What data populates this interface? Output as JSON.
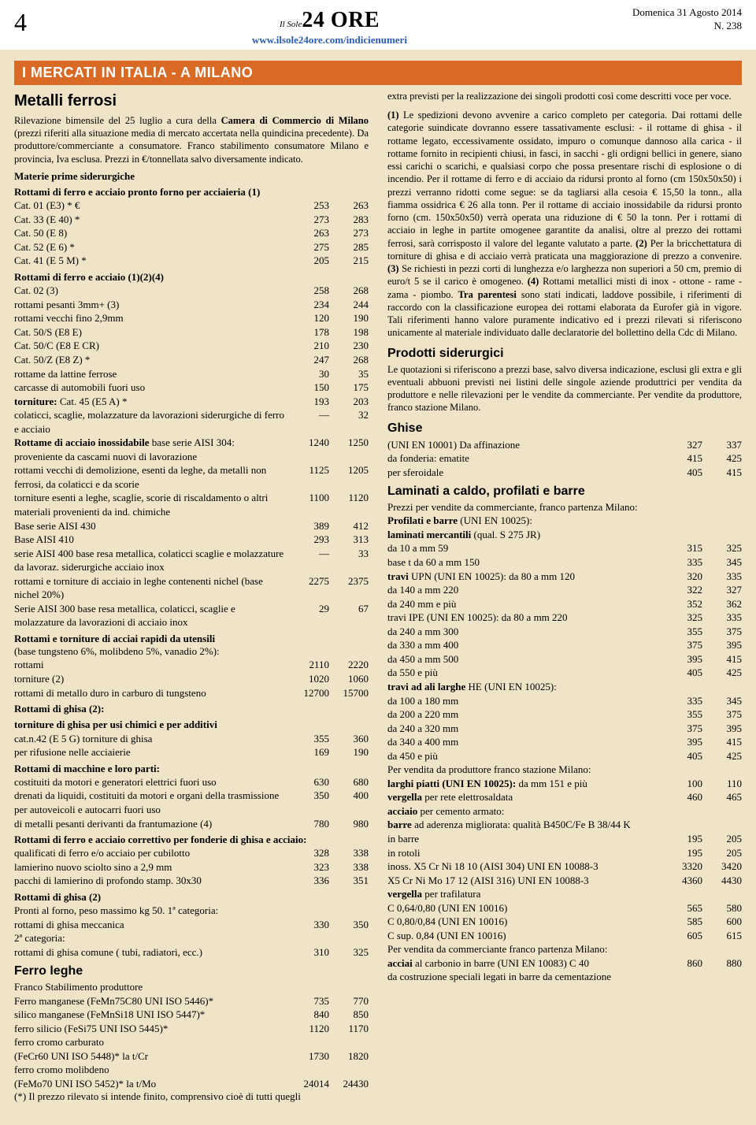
{
  "header": {
    "page_number": "4",
    "logo_small": "Il Sole",
    "logo_big": "24 ORE",
    "url": "www.ilsole24ore.com/indicienumeri",
    "date": "Domenica 31 Agosto 2014",
    "issue": "N. 238"
  },
  "section_bar": "I MERCATI IN ITALIA - A MILANO",
  "left": {
    "title": "Metalli ferrosi",
    "intro_parts": [
      {
        "t": "Rilevazione bimensile del 25 luglio a cura della ",
        "b": false
      },
      {
        "t": "Camera di Commercio di Milano ",
        "b": true
      },
      {
        "t": "(prezzi riferiti alla situazione media di mercato accertata nella quindicina precedente). Da produttore/commerciante a consumatore. Franco stabilimento consumatore Milano e provincia, Iva esclusa. Prezzi in €/tonnellata salvo diversamente indicato.",
        "b": false
      }
    ],
    "groups": [
      {
        "heading": "Materie prime siderurgiche",
        "rows": []
      },
      {
        "heading": "Rottami di ferro e acciaio pronto forno per acciaieria (1)",
        "rows": [
          {
            "l": "Cat. 01 (E3) * €",
            "a": "253",
            "b": "263"
          },
          {
            "l": "Cat. 33 (E 40) *",
            "a": "273",
            "b": "283"
          },
          {
            "l": "Cat. 50 (E 8)",
            "a": "263",
            "b": "273"
          },
          {
            "l": "Cat. 52 (E 6) *",
            "a": "275",
            "b": "285"
          },
          {
            "l": "Cat. 41 (E 5 M) *",
            "a": "205",
            "b": "215"
          }
        ]
      },
      {
        "heading": "Rottami di ferro e acciaio (1)(2)(4)",
        "rows": [
          {
            "l": "Cat. 02 (3)",
            "a": "258",
            "b": "268"
          },
          {
            "l": "rottami pesanti 3mm+ (3)",
            "a": "234",
            "b": "244"
          },
          {
            "l": "rottami vecchi fino 2,9mm",
            "a": "120",
            "b": "190"
          },
          {
            "l": "Cat. 50/S (E8 E)",
            "a": "178",
            "b": "198"
          },
          {
            "l": "Cat. 50/C (E8 E CR)",
            "a": "210",
            "b": "230"
          },
          {
            "l": "Cat. 50/Z (E8 Z) *",
            "a": "247",
            "b": "268"
          },
          {
            "l": "rottame da lattine ferrose",
            "a": "30",
            "b": "35"
          },
          {
            "l": "carcasse di automobili fuori uso",
            "a": "150",
            "b": "175"
          },
          {
            "l": "<b>torniture:</b> Cat. 45 (E5 A) *",
            "a": "193",
            "b": "203"
          },
          {
            "l": "colaticci, scaglie, molazzature da lavorazioni siderurgiche di ferro e acciaio",
            "a": "—",
            "b": "32"
          },
          {
            "l": "<b>Rottame di acciaio inossidabile</b> base serie AISI 304: proveniente da cascami nuovi di lavorazione",
            "a": "1240",
            "b": "1250"
          },
          {
            "l": "rottami vecchi di demolizione, esenti da leghe, da metalli non ferrosi, da colaticci e da scorie",
            "a": "1125",
            "b": "1205"
          },
          {
            "l": "torniture esenti a leghe, scaglie, scorie di riscaldamento o altri materiali provenienti da ind. chimiche",
            "a": "1100",
            "b": "1120"
          },
          {
            "l": "Base serie AISI 430",
            "a": "389",
            "b": "412"
          },
          {
            "l": "Base AISI 410",
            "a": "293",
            "b": "313"
          },
          {
            "l": "serie AISI 400 base resa metallica, colaticci scaglie e molazzature da lavoraz. siderurgiche acciaio inox",
            "a": "—",
            "b": "33"
          },
          {
            "l": "rottami e torniture di acciaio in leghe contenenti nichel (base nichel 20%)",
            "a": "2275",
            "b": "2375"
          },
          {
            "l": "Serie AISI 300 base resa metallica, colaticci, scaglie e molazzature da lavorazioni di acciaio inox",
            "a": "29",
            "b": "67"
          }
        ]
      },
      {
        "heading": "Rottami e torniture di acciai rapidi da utensili",
        "subheading": "(base tungsteno 6%, molibdeno 5%, vanadio 2%):",
        "rows": [
          {
            "l": "rottami",
            "a": "2110",
            "b": "2220"
          },
          {
            "l": "torniture (2)",
            "a": "1020",
            "b": "1060"
          },
          {
            "l": "rottami di metallo duro in carburo di tungsteno",
            "a": "12700",
            "b": "15700"
          }
        ]
      },
      {
        "heading": "Rottami di ghisa (2):",
        "rows": []
      },
      {
        "heading": "torniture di ghisa per usi chimici e per additivi",
        "rows": [
          {
            "l": "cat.n.42 (E 5 G) torniture di ghisa",
            "a": "355",
            "b": "360"
          },
          {
            "l": "per rifusione nelle acciaierie",
            "a": "169",
            "b": "190"
          }
        ]
      },
      {
        "heading": "Rottami di macchine e loro parti:",
        "rows": [
          {
            "l": "costituiti da motori e generatori elettrici fuori uso",
            "a": "630",
            "b": "680"
          },
          {
            "l": "drenati da liquidi, costituiti da motori e organi della trasmissione per autoveicoli e autocarri fuori uso",
            "a": "350",
            "b": "400"
          },
          {
            "l": "di metalli pesanti derivanti da frantumazione (4)",
            "a": "780",
            "b": "980"
          }
        ]
      },
      {
        "heading": "Rottami di ferro e acciaio correttivo per fonderie di ghisa e acciaio:",
        "rows": [
          {
            "l": "qualificati di ferro e/o acciaio per cubilotto",
            "a": "328",
            "b": "338"
          },
          {
            "l": "lamierino nuovo sciolto sino a 2,9 mm",
            "a": "323",
            "b": "338"
          },
          {
            "l": "pacchi di lamierino di profondo stamp. 30x30",
            "a": "336",
            "b": "351"
          }
        ]
      },
      {
        "heading": "Rottami di ghisa (2)",
        "rows": [
          {
            "l": "Pronti al forno, peso massimo kg 50. 1ª categoria:",
            "a": "",
            "b": ""
          },
          {
            "l": "rottami di ghisa meccanica",
            "a": "330",
            "b": "350"
          },
          {
            "l": "2ª categoria:",
            "a": "",
            "b": ""
          },
          {
            "l": "rottami di ghisa comune ( tubi, radiatori, ecc.)",
            "a": "310",
            "b": "325"
          }
        ]
      }
    ],
    "ferro_title": "Ferro leghe",
    "ferro_sub": "Franco Stabilimento produttore",
    "ferro_rows": [
      {
        "l": "Ferro manganese (FeMn75C80 UNI ISO 5446)*",
        "a": "735",
        "b": "770"
      },
      {
        "l": "silico manganese (FeMnSi18 UNI ISO 5447)*",
        "a": "840",
        "b": "850"
      },
      {
        "l": "ferro silicio (FeSi75 UNI ISO 5445)*",
        "a": "1120",
        "b": "1170"
      },
      {
        "l": "ferro cromo carburato",
        "a": "",
        "b": ""
      },
      {
        "l": "(FeCr60 UNI ISO 5448)* la t/Cr",
        "a": "1730",
        "b": "1820"
      },
      {
        "l": "ferro cromo molibdeno",
        "a": "",
        "b": ""
      },
      {
        "l": "(FeMo70 UNI ISO 5452)* la t/Mo",
        "a": "24014",
        "b": "24430"
      }
    ],
    "ferro_note": "(*) Il prezzo rilevato si intende finito, comprensivo cioè di tutti quegli"
  },
  "right": {
    "cont_text": "extra previsti per la realizzazione dei singoli prodotti così come descritti voce per voce.",
    "note1_parts": [
      {
        "t": "(1) ",
        "b": true
      },
      {
        "t": "Le spedizioni devono avvenire a carico completo per categoria. Dai rottami delle categorie suindicate dovranno essere tassativamente esclusi: - il rottame di ghisa - il rottame legato, eccessivamente ossidato, impuro o comunque dannoso alla carica - il rottame fornito in recipienti chiusi, in fasci, in sacchi - gli ordigni bellici in genere, siano essi carichi o scarichi, e qualsiasi corpo che possa presentare rischi di esplosione o di incendio. Per il rottame di ferro e di acciaio da ridursi pronto al forno (cm 150x50x50) i prezzi verranno ridotti come segue: se da tagliarsi alla cesoia € 15,50 la tonn., alla fiamma ossidrica € 26 alla tonn. Per il rottame di acciaio inossidabile da ridursi pronto forno (cm. 150x50x50) verrà operata una riduzione di € 50 la tonn. Per i rottami di acciaio in leghe in partite omogenee garantite da analisi, oltre al prezzo dei rottami ferrosi, sarà corrisposto il valore del legante valutato a parte. ",
        "b": false
      },
      {
        "t": "(2) ",
        "b": true
      },
      {
        "t": "Per la bricchettatura di torniture di ghisa e di acciaio verrà praticata una maggiorazione di prezzo a convenire. ",
        "b": false
      },
      {
        "t": "(3) ",
        "b": true
      },
      {
        "t": "Se richiesti in pezzi corti di lunghezza e/o larghezza non superiori a 50 cm, premio di euro/t 5 se il carico è omogeneo. ",
        "b": false
      },
      {
        "t": "(4) ",
        "b": true
      },
      {
        "t": "Rottami metallici misti di inox - ottone - rame - zama - piombo. ",
        "b": false
      },
      {
        "t": "Tra parentesi ",
        "b": true
      },
      {
        "t": "sono stati indicati, laddove possibile, i riferimenti di raccordo con la classificazione europea dei rottami elaborata da Eurofer già in vigore. Tali riferimenti hanno valore puramente indicativo ed i prezzi rilevati si riferiscono unicamente al materiale individuato dalle declaratorie del bollettino della Cdc di Milano.",
        "b": false
      }
    ],
    "prodotti_title": "Prodotti siderurgici",
    "prodotti_text": "Le quotazioni si riferiscono a prezzi base, salvo diversa indicazione, esclusi gli extra e gli eventuali abbuoni previsti nei listini delle singole aziende produttrici per vendita da produttore e nelle rilevazioni per le vendite da commerciante. Per vendite da produttore, franco stazione Milano.",
    "ghise_title": "Ghise",
    "ghise_rows": [
      {
        "l": "(UNI EN 10001) Da affinazione",
        "a": "327",
        "b": "337"
      },
      {
        "l": "da fonderia: ematite",
        "a": "415",
        "b": "425"
      },
      {
        "l": "per sferoidale",
        "a": "405",
        "b": "415"
      }
    ],
    "laminati_title": "Laminati a caldo, profilati e barre",
    "laminati_intro": "Prezzi per vendite da commerciante, franco partenza Milano:",
    "laminati_rows": [
      {
        "l": "<b>Profilati e barre</b> (UNI EN 10025):",
        "a": "",
        "b": ""
      },
      {
        "l": "<b>laminati mercantili</b> (qual. S 275 JR)",
        "a": "",
        "b": ""
      },
      {
        "l": "da 10 a mm 59",
        "a": "315",
        "b": "325"
      },
      {
        "l": "base t da 60 a mm 150",
        "a": "335",
        "b": "345"
      },
      {
        "l": "<b>travi</b> UPN (UNI EN 10025): da 80 a mm 120",
        "a": "320",
        "b": "335"
      },
      {
        "l": "da 140 a mm 220",
        "a": "322",
        "b": "327"
      },
      {
        "l": "da 240 mm e più",
        "a": "352",
        "b": "362"
      },
      {
        "l": "travi IPE (UNI EN 10025): da 80 a mm 220",
        "a": "325",
        "b": "335"
      },
      {
        "l": "da 240 a mm 300",
        "a": "355",
        "b": "375"
      },
      {
        "l": "da 330 a mm 400",
        "a": "375",
        "b": "395"
      },
      {
        "l": "da 450 a mm 500",
        "a": "395",
        "b": "415"
      },
      {
        "l": "da 550 e più",
        "a": "405",
        "b": "425"
      },
      {
        "l": "<b>travi ad ali larghe</b> HE (UNI EN 10025):",
        "a": "",
        "b": ""
      },
      {
        "l": "da 100 a 180 mm",
        "a": "335",
        "b": "345"
      },
      {
        "l": "da 200 a 220 mm",
        "a": "355",
        "b": "375"
      },
      {
        "l": "da 240 a 320 mm",
        "a": "375",
        "b": "395"
      },
      {
        "l": "da 340 a 400 mm",
        "a": "395",
        "b": "415"
      },
      {
        "l": "da 450 e più",
        "a": "405",
        "b": "425"
      },
      {
        "l": "Per vendita da produttore franco stazione Milano:",
        "a": "",
        "b": ""
      },
      {
        "l": "<b>larghi piatti (UNI EN 10025):</b> da mm 151 e più",
        "a": "100",
        "b": "110"
      },
      {
        "l": "<b>vergella</b> per rete elettrosaldata",
        "a": "460",
        "b": "465"
      },
      {
        "l": "<b>acciaio</b> per cemento armato:",
        "a": "",
        "b": ""
      },
      {
        "l": "<b>barre</b> ad aderenza migliorata: qualità B450C/Fe B 38/44 K",
        "a": "",
        "b": ""
      },
      {
        "l": "in barre",
        "a": "195",
        "b": "205"
      },
      {
        "l": "in rotoli",
        "a": "195",
        "b": "205"
      },
      {
        "l": "inoss. X5 Cr Ni 18 10 (AISI 304) UNI EN 10088-3",
        "a": "3320",
        "b": "3420"
      },
      {
        "l": "X5 Cr Ni Mo 17 12 (AISI 316) UNI EN 10088-3",
        "a": "4360",
        "b": "4430"
      },
      {
        "l": "<b>vergella</b> per trafilatura",
        "a": "",
        "b": ""
      },
      {
        "l": "C 0,64/0,80 (UNI EN 10016)",
        "a": "565",
        "b": "580"
      },
      {
        "l": "C 0,80/0,84 (UNI EN 10016)",
        "a": "585",
        "b": "600"
      },
      {
        "l": "C sup. 0,84 (UNI EN 10016)",
        "a": "605",
        "b": "615"
      },
      {
        "l": "Per vendita da commerciante franco partenza Milano:",
        "a": "",
        "b": ""
      },
      {
        "l": "<b>acciai</b> al carbonio in barre (UNI EN 10083) C 40",
        "a": "860",
        "b": "880"
      },
      {
        "l": "da costruzione speciali legati in barre da cementazione",
        "a": "",
        "b": ""
      }
    ]
  }
}
